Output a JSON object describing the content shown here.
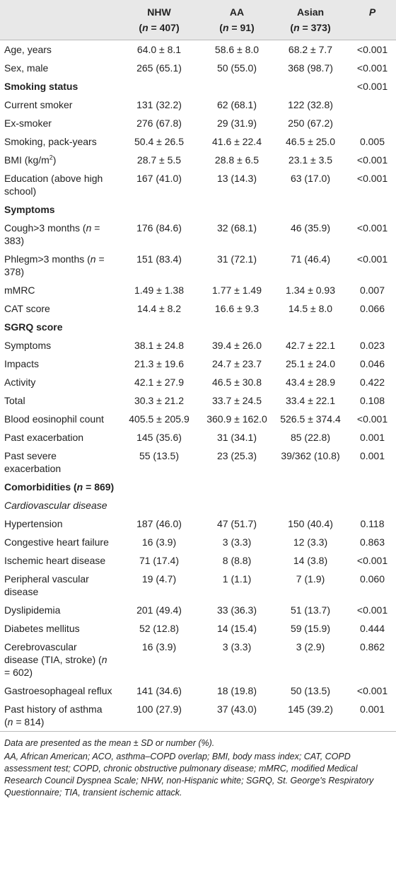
{
  "table": {
    "header": [
      [
        "NHW",
        "AA",
        "Asian",
        [
          {
            "i": "P"
          }
        ]
      ],
      [
        [
          "(",
          {
            "i": "n"
          },
          " = 407)"
        ],
        [
          "(",
          {
            "i": "n"
          },
          " = 91)"
        ],
        [
          "(",
          {
            "i": "n"
          },
          " = 373)"
        ],
        null
      ]
    ],
    "rows": [
      {
        "label": "Age, years",
        "cells": [
          "64.0 ± 8.1",
          "58.6 ± 8.0",
          "68.2 ± 7.7",
          "<0.001"
        ]
      },
      {
        "label": "Sex, male",
        "cells": [
          "265 (65.1)",
          "50 (55.0)",
          "368 (98.7)",
          "<0.001"
        ]
      },
      {
        "label": "Smoking status",
        "kind": "section",
        "cells": [
          null,
          null,
          null,
          "<0.001"
        ]
      },
      {
        "label": "Current smoker",
        "cells": [
          "131 (32.2)",
          "62 (68.1)",
          "122 (32.8)",
          null
        ]
      },
      {
        "label": "Ex-smoker",
        "cells": [
          "276 (67.8)",
          "29 (31.9)",
          "250 (67.2)",
          null
        ]
      },
      {
        "label": "Smoking, pack-years",
        "cells": [
          "50.4 ± 26.5",
          "41.6 ± 22.4",
          "46.5 ± 25.0",
          "0.005"
        ]
      },
      {
        "label": [
          "BMI (kg/m",
          {
            "sup": "2"
          },
          ")"
        ],
        "cells": [
          "28.7 ± 5.5",
          "28.8 ± 6.5",
          "23.1 ± 3.5",
          "<0.001"
        ]
      },
      {
        "label": "Education (above high school)",
        "cells": [
          "167 (41.0)",
          "13 (14.3)",
          "63 (17.0)",
          "<0.001"
        ]
      },
      {
        "label": "Symptoms",
        "kind": "section"
      },
      {
        "label": [
          "Cough>3 months (",
          {
            "i": "n"
          },
          " = 383)"
        ],
        "cells": [
          "176 (84.6)",
          "32 (68.1)",
          "46 (35.9)",
          "<0.001"
        ]
      },
      {
        "label": [
          "Phlegm>3 months (",
          {
            "i": "n"
          },
          " = 378)"
        ],
        "cells": [
          "151 (83.4)",
          "31 (72.1)",
          "71 (46.4)",
          "<0.001"
        ]
      },
      {
        "label": "mMRC",
        "cells": [
          "1.49 ± 1.38",
          "1.77 ± 1.49",
          "1.34 ± 0.93",
          "0.007"
        ]
      },
      {
        "label": "CAT score",
        "cells": [
          "14.4 ± 8.2",
          "16.6 ± 9.3",
          "14.5 ± 8.0",
          "0.066"
        ]
      },
      {
        "label": "SGRQ score",
        "kind": "section"
      },
      {
        "label": "Symptoms",
        "cells": [
          "38.1 ± 24.8",
          "39.4 ± 26.0",
          "42.7 ± 22.1",
          "0.023"
        ]
      },
      {
        "label": "Impacts",
        "cells": [
          "21.3 ± 19.6",
          "24.7 ± 23.7",
          "25.1 ± 24.0",
          "0.046"
        ]
      },
      {
        "label": "Activity",
        "cells": [
          "42.1 ± 27.9",
          "46.5 ± 30.8",
          "43.4 ± 28.9",
          "0.422"
        ]
      },
      {
        "label": "Total",
        "cells": [
          "30.3 ± 21.2",
          "33.7 ± 24.5",
          "33.4 ± 22.1",
          "0.108"
        ]
      },
      {
        "label": "Blood eosinophil count",
        "cells": [
          "405.5 ± 205.9",
          "360.9 ± 162.0",
          "526.5 ± 374.4",
          "<0.001"
        ]
      },
      {
        "label": "Past exacerbation",
        "cells": [
          "145 (35.6)",
          "31 (34.1)",
          "85 (22.8)",
          "0.001"
        ]
      },
      {
        "label": "Past severe exacerbation",
        "cells": [
          "55 (13.5)",
          "23 (25.3)",
          "39/362 (10.8)",
          "0.001"
        ]
      },
      {
        "label": [
          "Comorbidities (",
          {
            "i": "n"
          },
          " = 869)"
        ],
        "kind": "section"
      },
      {
        "label": "Cardiovascular disease",
        "kind": "sub"
      },
      {
        "label": "Hypertension",
        "cells": [
          "187 (46.0)",
          "47 (51.7)",
          "150 (40.4)",
          "0.118"
        ]
      },
      {
        "label": "Congestive heart failure",
        "cells": [
          "16 (3.9)",
          "3 (3.3)",
          "12 (3.3)",
          "0.863"
        ]
      },
      {
        "label": "Ischemic heart disease",
        "cells": [
          "71 (17.4)",
          "8 (8.8)",
          "14 (3.8)",
          "<0.001"
        ]
      },
      {
        "label": "Peripheral vascular disease",
        "cells": [
          "19 (4.7)",
          "1 (1.1)",
          "7 (1.9)",
          "0.060"
        ]
      },
      {
        "label": "Dyslipidemia",
        "cells": [
          "201 (49.4)",
          "33 (36.3)",
          "51 (13.7)",
          "<0.001"
        ]
      },
      {
        "label": "Diabetes mellitus",
        "cells": [
          "52 (12.8)",
          "14 (15.4)",
          "59 (15.9)",
          "0.444"
        ]
      },
      {
        "label": [
          "Cerebrovascular disease (TIA, stroke) (",
          {
            "i": "n"
          },
          " = 602)"
        ],
        "cells": [
          "16 (3.9)",
          "3 (3.3)",
          "3 (2.9)",
          "0.862"
        ]
      },
      {
        "label": "Gastroesophageal reflux",
        "cells": [
          "141 (34.6)",
          "18 (19.8)",
          "50 (13.5)",
          "<0.001"
        ]
      },
      {
        "label": [
          "Past history of asthma (",
          {
            "i": "n"
          },
          " = 814)"
        ],
        "cells": [
          "100 (27.9)",
          "37 (43.0)",
          "145 (39.2)",
          "0.001"
        ]
      }
    ],
    "footnotes": [
      "Data are presented as the mean ± SD or number (%).",
      "AA, African American; ACO, asthma–COPD overlap; BMI, body mass index; CAT, COPD assessment test; COPD, chronic obstructive pulmonary disease; mMRC, modified Medical Research Council Dyspnea Scale; NHW, non-Hispanic white; SGRQ, St. George's Respiratory Questionnaire; TIA, transient ischemic attack."
    ]
  }
}
